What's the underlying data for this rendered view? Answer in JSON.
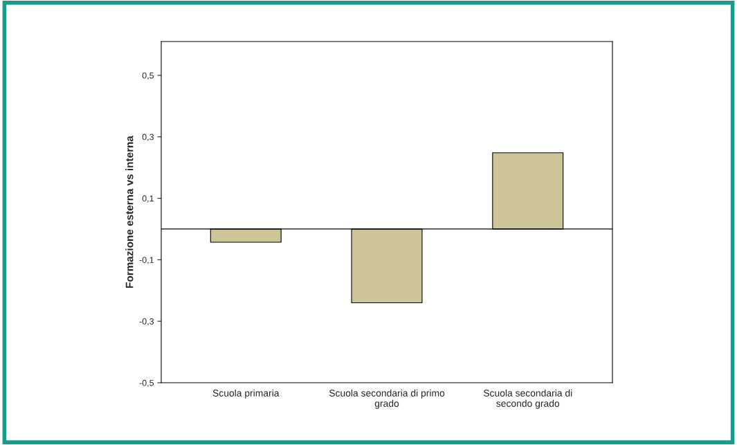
{
  "chart_data": {
    "type": "bar",
    "ylabel": "Formazione esterna vs interna",
    "categories": [
      "Scuola primaria",
      "Scuola secondaria di primo grado",
      "Scuola secondaria di secondo grado"
    ],
    "values": [
      -0.043,
      -0.24,
      0.248
    ],
    "color": "#cdc597",
    "ylim": [
      -0.5,
      0.61
    ],
    "yticks": [
      {
        "value": -0.5,
        "label": "-0,5"
      },
      {
        "value": -0.3,
        "label": "-0,3"
      },
      {
        "value": -0.1,
        "label": "-0,1"
      },
      {
        "value": 0.1,
        "label": "0,1"
      },
      {
        "value": 0.3,
        "label": "0,3"
      },
      {
        "value": 0.5,
        "label": "0,5"
      }
    ],
    "ref_lines": [
      {
        "axis": "y",
        "value": 0,
        "color": "#000000"
      }
    ],
    "grid": false,
    "legend": false
  }
}
